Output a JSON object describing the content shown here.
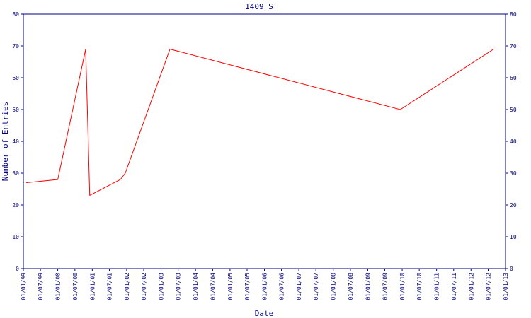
{
  "chart_data": {
    "type": "line",
    "title": "1409 S",
    "x_label": "Date",
    "y_label": "Number of Entries",
    "x": [
      "1999-02-01",
      "2000-01-01",
      "2000-10-23",
      "2000-12-05",
      "2001-10-26",
      "2001-12-17",
      "2003-04-05",
      "2009-12-12",
      "2012-08-28"
    ],
    "series": [
      {
        "name": "1409 S",
        "color": "#ff0000",
        "values": [
          27,
          28,
          69,
          23,
          28,
          30,
          69,
          50,
          69
        ]
      }
    ],
    "xlim": [
      "1999-01-01",
      "2013-01-01"
    ],
    "xticks": [
      {
        "value": "1999-01-01",
        "label": "01/01/99"
      },
      {
        "value": "1999-07-01",
        "label": "01/07/99"
      },
      {
        "value": "2000-01-01",
        "label": "01/01/00"
      },
      {
        "value": "2000-07-01",
        "label": "01/07/00"
      },
      {
        "value": "2001-01-01",
        "label": "01/01/01"
      },
      {
        "value": "2001-07-01",
        "label": "01/07/01"
      },
      {
        "value": "2002-01-01",
        "label": "01/01/02"
      },
      {
        "value": "2002-07-01",
        "label": "01/07/02"
      },
      {
        "value": "2003-01-01",
        "label": "01/01/03"
      },
      {
        "value": "2003-07-01",
        "label": "01/07/03"
      },
      {
        "value": "2004-01-01",
        "label": "01/01/04"
      },
      {
        "value": "2004-07-01",
        "label": "01/07/04"
      },
      {
        "value": "2005-01-01",
        "label": "01/01/05"
      },
      {
        "value": "2005-07-01",
        "label": "01/07/05"
      },
      {
        "value": "2006-01-01",
        "label": "01/01/06"
      },
      {
        "value": "2006-07-01",
        "label": "01/07/06"
      },
      {
        "value": "2007-01-01",
        "label": "01/01/07"
      },
      {
        "value": "2007-07-01",
        "label": "01/07/07"
      },
      {
        "value": "2008-01-01",
        "label": "01/01/08"
      },
      {
        "value": "2008-07-01",
        "label": "01/07/08"
      },
      {
        "value": "2009-01-01",
        "label": "01/01/09"
      },
      {
        "value": "2009-07-01",
        "label": "01/07/09"
      },
      {
        "value": "2010-01-01",
        "label": "01/01/10"
      },
      {
        "value": "2010-07-01",
        "label": "01/07/10"
      },
      {
        "value": "2011-01-01",
        "label": "01/01/11"
      },
      {
        "value": "2011-07-01",
        "label": "01/07/11"
      },
      {
        "value": "2012-01-01",
        "label": "01/01/12"
      },
      {
        "value": "2012-07-01",
        "label": "01/07/12"
      },
      {
        "value": "2013-01-01",
        "label": "01/01/13"
      }
    ],
    "ylim": [
      0,
      80
    ],
    "yticks": [
      0,
      10,
      20,
      30,
      40,
      50,
      60,
      70,
      80
    ],
    "grid": false
  }
}
